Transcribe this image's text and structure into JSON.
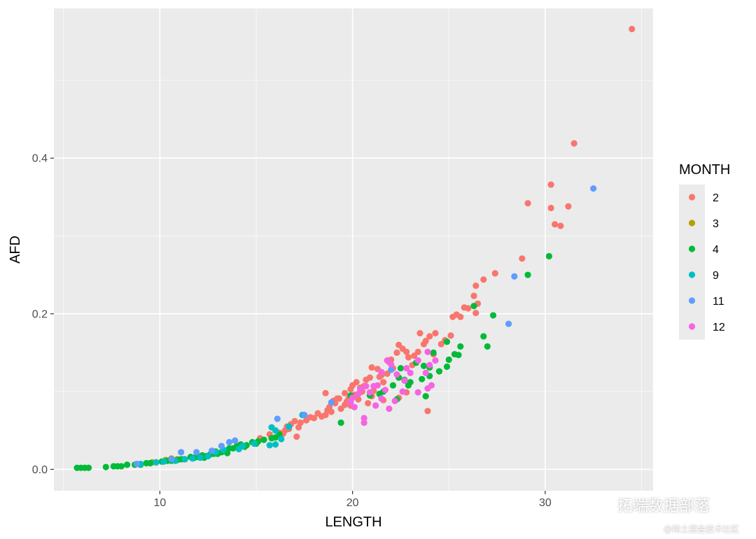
{
  "chart_data": {
    "type": "scatter",
    "xlabel": "LENGTH",
    "ylabel": "AFD",
    "xlim": [
      4.5,
      35.6
    ],
    "ylim": [
      -0.0275,
      0.5925
    ],
    "xticks": [
      10,
      20,
      30
    ],
    "yticks": [
      0.0,
      0.2,
      0.4
    ],
    "x_tick_labels": [
      "10",
      "20",
      "30"
    ],
    "y_tick_labels": [
      "0.0",
      "0.2",
      "0.4"
    ],
    "grid": true,
    "legend_title": "MONTH",
    "legend_position": "right",
    "series": [
      {
        "name": "2",
        "color": "#F8766D",
        "points": [
          [
            34.5,
            0.566
          ],
          [
            31.5,
            0.419
          ],
          [
            30.3,
            0.366
          ],
          [
            30.3,
            0.336
          ],
          [
            30.5,
            0.315
          ],
          [
            30.8,
            0.313
          ],
          [
            31.2,
            0.338
          ],
          [
            29.1,
            0.342
          ],
          [
            28.8,
            0.271
          ],
          [
            27.4,
            0.252
          ],
          [
            26.8,
            0.244
          ],
          [
            26.4,
            0.236
          ],
          [
            26.3,
            0.223
          ],
          [
            26.5,
            0.213
          ],
          [
            26.4,
            0.201
          ],
          [
            26.0,
            0.207
          ],
          [
            25.8,
            0.208
          ],
          [
            25.6,
            0.196
          ],
          [
            25.4,
            0.199
          ],
          [
            25.2,
            0.196
          ],
          [
            25.1,
            0.172
          ],
          [
            24.8,
            0.166
          ],
          [
            24.6,
            0.161
          ],
          [
            24.3,
            0.175
          ],
          [
            24.0,
            0.171
          ],
          [
            24.2,
            0.148
          ],
          [
            23.8,
            0.165
          ],
          [
            23.5,
            0.175
          ],
          [
            23.7,
            0.161
          ],
          [
            23.4,
            0.151
          ],
          [
            23.2,
            0.146
          ],
          [
            23.1,
            0.134
          ],
          [
            22.9,
            0.144
          ],
          [
            22.8,
            0.151
          ],
          [
            22.6,
            0.155
          ],
          [
            22.4,
            0.16
          ],
          [
            22.3,
            0.15
          ],
          [
            22.0,
            0.141
          ],
          [
            22.1,
            0.13
          ],
          [
            21.9,
            0.138
          ],
          [
            21.8,
            0.123
          ],
          [
            21.5,
            0.121
          ],
          [
            21.6,
            0.112
          ],
          [
            21.4,
            0.119
          ],
          [
            21.3,
            0.129
          ],
          [
            21.0,
            0.131
          ],
          [
            20.9,
            0.118
          ],
          [
            20.7,
            0.115
          ],
          [
            20.6,
            0.107
          ],
          [
            20.4,
            0.105
          ],
          [
            20.5,
            0.1
          ],
          [
            20.2,
            0.112
          ],
          [
            20.0,
            0.108
          ],
          [
            20.1,
            0.096
          ],
          [
            19.9,
            0.103
          ],
          [
            19.8,
            0.091
          ],
          [
            19.7,
            0.087
          ],
          [
            19.9,
            0.082
          ],
          [
            19.6,
            0.083
          ],
          [
            19.4,
            0.078
          ],
          [
            19.3,
            0.091
          ],
          [
            19.2,
            0.091
          ],
          [
            19.1,
            0.085
          ],
          [
            19.0,
            0.088
          ],
          [
            18.9,
            0.074
          ],
          [
            18.7,
            0.076
          ],
          [
            18.6,
            0.098
          ],
          [
            18.6,
            0.07
          ],
          [
            18.4,
            0.068
          ],
          [
            18.2,
            0.072
          ],
          [
            18.0,
            0.066
          ],
          [
            17.8,
            0.067
          ],
          [
            17.6,
            0.063
          ],
          [
            17.3,
            0.06
          ],
          [
            17.2,
            0.054
          ],
          [
            17.0,
            0.062
          ],
          [
            16.8,
            0.058
          ],
          [
            16.7,
            0.052
          ],
          [
            16.5,
            0.05
          ],
          [
            16.4,
            0.046
          ],
          [
            16.2,
            0.047
          ],
          [
            16.6,
            0.055
          ],
          [
            15.7,
            0.045
          ],
          [
            17.1,
            0.042
          ],
          [
            21.6,
            0.089
          ],
          [
            22.4,
            0.092
          ],
          [
            23.9,
            0.075
          ],
          [
            21.1,
            0.101
          ],
          [
            22.8,
            0.099
          ],
          [
            20.8,
            0.085
          ],
          [
            19.6,
            0.098
          ],
          [
            18.8,
            0.08
          ],
          [
            20.3,
            0.09
          ],
          [
            21.0,
            0.094
          ],
          [
            15.2,
            0.04
          ],
          [
            10.3,
            0.012
          ]
        ]
      },
      {
        "name": "3",
        "color": "#B79F00",
        "points": [
          [
            10.3,
            0.012
          ],
          [
            10.6,
            0.014
          ],
          [
            11.2,
            0.013
          ],
          [
            9.6,
            0.009
          ],
          [
            10.9,
            0.013
          ]
        ]
      },
      {
        "name": "4",
        "color": "#00BA38",
        "points": [
          [
            30.2,
            0.274
          ],
          [
            29.1,
            0.25
          ],
          [
            27.3,
            0.198
          ],
          [
            26.3,
            0.21
          ],
          [
            26.8,
            0.171
          ],
          [
            27.0,
            0.158
          ],
          [
            25.6,
            0.158
          ],
          [
            25.3,
            0.148
          ],
          [
            25.5,
            0.147
          ],
          [
            24.9,
            0.164
          ],
          [
            25.0,
            0.141
          ],
          [
            24.9,
            0.132
          ],
          [
            24.5,
            0.126
          ],
          [
            24.2,
            0.15
          ],
          [
            24.0,
            0.131
          ],
          [
            24.0,
            0.12
          ],
          [
            23.6,
            0.116
          ],
          [
            23.7,
            0.133
          ],
          [
            23.3,
            0.137
          ],
          [
            23.0,
            0.112
          ],
          [
            22.9,
            0.108
          ],
          [
            22.7,
            0.115
          ],
          [
            22.5,
            0.13
          ],
          [
            22.4,
            0.118
          ],
          [
            22.1,
            0.108
          ],
          [
            22.3,
            0.09
          ],
          [
            23.8,
            0.094
          ],
          [
            21.6,
            0.1
          ],
          [
            21.4,
            0.097
          ],
          [
            20.9,
            0.095
          ],
          [
            19.9,
            0.095
          ],
          [
            19.4,
            0.06
          ],
          [
            16.2,
            0.045
          ],
          [
            15.8,
            0.04
          ],
          [
            15.4,
            0.038
          ],
          [
            15.0,
            0.033
          ],
          [
            14.8,
            0.035
          ],
          [
            14.5,
            0.031
          ],
          [
            14.2,
            0.032
          ],
          [
            14.0,
            0.03
          ],
          [
            13.8,
            0.027
          ],
          [
            13.6,
            0.027
          ],
          [
            13.4,
            0.024
          ],
          [
            13.2,
            0.022
          ],
          [
            13.0,
            0.02
          ],
          [
            12.8,
            0.02
          ],
          [
            12.6,
            0.019
          ],
          [
            12.4,
            0.017
          ],
          [
            12.2,
            0.018
          ],
          [
            12.0,
            0.016
          ],
          [
            11.8,
            0.015
          ],
          [
            11.6,
            0.016
          ],
          [
            11.3,
            0.013
          ],
          [
            11.1,
            0.013
          ],
          [
            10.9,
            0.012
          ],
          [
            10.6,
            0.011
          ],
          [
            10.4,
            0.011
          ],
          [
            10.1,
            0.01
          ],
          [
            9.8,
            0.009
          ],
          [
            9.5,
            0.008
          ],
          [
            9.3,
            0.008
          ],
          [
            9.0,
            0.006
          ],
          [
            8.7,
            0.006
          ],
          [
            8.3,
            0.006
          ],
          [
            8.0,
            0.004
          ],
          [
            7.8,
            0.004
          ],
          [
            7.6,
            0.004
          ],
          [
            7.2,
            0.003
          ],
          [
            6.3,
            0.002
          ],
          [
            6.1,
            0.002
          ],
          [
            5.9,
            0.002
          ],
          [
            5.7,
            0.002
          ],
          [
            13.5,
            0.021
          ],
          [
            12.9,
            0.023
          ],
          [
            12.3,
            0.015
          ],
          [
            14.4,
            0.029
          ],
          [
            15.1,
            0.036
          ],
          [
            16.0,
            0.041
          ]
        ]
      },
      {
        "name": "9",
        "color": "#00BFC4",
        "points": [
          [
            17.4,
            0.07
          ],
          [
            16.7,
            0.055
          ],
          [
            16.3,
            0.039
          ],
          [
            15.8,
            0.054
          ],
          [
            16.0,
            0.05
          ],
          [
            15.7,
            0.031
          ],
          [
            16.0,
            0.032
          ],
          [
            14.9,
            0.033
          ],
          [
            14.3,
            0.03
          ],
          [
            14.1,
            0.026
          ],
          [
            13.3,
            0.025
          ],
          [
            12.9,
            0.022
          ],
          [
            12.5,
            0.017
          ],
          [
            12.1,
            0.015
          ],
          [
            11.7,
            0.014
          ],
          [
            11.3,
            0.013
          ],
          [
            10.8,
            0.011
          ],
          [
            10.2,
            0.01
          ],
          [
            9.8,
            0.009
          ],
          [
            9.0,
            0.007
          ]
        ]
      },
      {
        "name": "11",
        "color": "#619CFF",
        "points": [
          [
            32.5,
            0.361
          ],
          [
            28.4,
            0.248
          ],
          [
            28.1,
            0.187
          ],
          [
            22.0,
            0.128
          ],
          [
            18.9,
            0.086
          ],
          [
            17.5,
            0.07
          ],
          [
            16.1,
            0.065
          ],
          [
            13.9,
            0.037
          ],
          [
            13.6,
            0.035
          ],
          [
            13.2,
            0.03
          ],
          [
            12.7,
            0.024
          ],
          [
            11.9,
            0.022
          ],
          [
            11.1,
            0.022
          ],
          [
            10.6,
            0.013
          ],
          [
            8.8,
            0.007
          ]
        ]
      },
      {
        "name": "12",
        "color": "#F564E3",
        "points": [
          [
            23.9,
            0.151
          ],
          [
            24.0,
            0.134
          ],
          [
            24.3,
            0.14
          ],
          [
            23.8,
            0.124
          ],
          [
            23.4,
            0.14
          ],
          [
            23.0,
            0.124
          ],
          [
            22.8,
            0.13
          ],
          [
            22.3,
            0.122
          ],
          [
            22.0,
            0.135
          ],
          [
            21.8,
            0.14
          ],
          [
            21.5,
            0.125
          ],
          [
            21.3,
            0.108
          ],
          [
            21.1,
            0.107
          ],
          [
            20.9,
            0.099
          ],
          [
            20.7,
            0.107
          ],
          [
            20.4,
            0.103
          ],
          [
            20.3,
            0.097
          ],
          [
            20.0,
            0.092
          ],
          [
            19.9,
            0.086
          ],
          [
            20.1,
            0.08
          ],
          [
            20.6,
            0.066
          ],
          [
            20.6,
            0.06
          ],
          [
            21.2,
            0.082
          ],
          [
            21.9,
            0.078
          ],
          [
            22.2,
            0.088
          ],
          [
            22.6,
            0.1
          ],
          [
            23.4,
            0.099
          ],
          [
            24.1,
            0.108
          ],
          [
            23.9,
            0.104
          ],
          [
            21.5,
            0.091
          ],
          [
            22.7,
            0.114
          ],
          [
            21.7,
            0.102
          ]
        ]
      }
    ]
  },
  "watermark": {
    "main": "拓端数据部落",
    "sub": "@稀土掘金技术社区",
    "icon": "wechat-icon"
  }
}
